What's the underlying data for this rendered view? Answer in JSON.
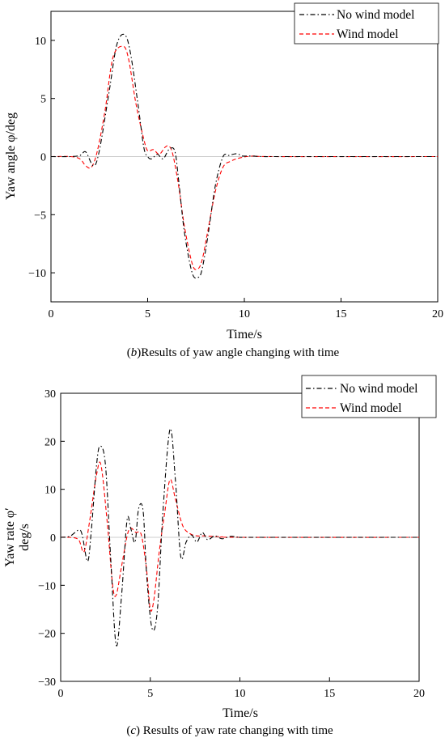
{
  "chart_data": [
    {
      "type": "line",
      "ylabel": "Yaw angle φ/deg",
      "xlabel": "Time/s",
      "caption_letter": "b",
      "caption_text": "Results of yaw angle changing with time",
      "xlim": [
        0,
        20
      ],
      "ylim": [
        -12.5,
        12.5
      ],
      "x_ticks": [
        0,
        5,
        10,
        15,
        20
      ],
      "y_ticks": [
        10,
        5,
        0,
        -5,
        -10
      ],
      "x_tick_labels": [
        "0",
        "5",
        "10",
        "15",
        "20"
      ],
      "y_tick_labels": [
        "10",
        "5",
        "0",
        "−5",
        "−10"
      ],
      "legend_position": "top-right",
      "series": [
        {
          "name": "No wind model",
          "color": "#000000",
          "style": "dash-dot",
          "x": [
            0,
            1.0,
            1.5,
            1.8,
            2.2,
            2.5,
            3.0,
            3.4,
            3.8,
            4.1,
            4.5,
            4.8,
            5.0,
            5.2,
            5.5,
            5.8,
            6.1,
            6.4,
            6.6,
            6.9,
            7.3,
            7.6,
            7.8,
            8.1,
            8.5,
            8.9,
            9.2,
            9.6,
            9.9,
            10.3,
            11,
            12,
            20
          ],
          "y": [
            0,
            0,
            0.1,
            0.4,
            -0.8,
            0.5,
            5.5,
            9.6,
            10.5,
            9.0,
            4.5,
            0.8,
            0.0,
            -0.2,
            0.2,
            -0.2,
            0.6,
            0.5,
            -2.0,
            -6.5,
            -10.0,
            -10.4,
            -9.8,
            -7.0,
            -2.5,
            0.0,
            0.1,
            0.25,
            0.05,
            0.05,
            0,
            0,
            0
          ]
        },
        {
          "name": "Wind model",
          "color": "#ff0000",
          "style": "dashed",
          "x": [
            0,
            1.0,
            1.5,
            1.8,
            2.1,
            2.4,
            2.8,
            3.2,
            3.7,
            4.0,
            4.4,
            4.8,
            5.0,
            5.3,
            5.6,
            5.9,
            6.1,
            6.3,
            6.6,
            6.9,
            7.3,
            7.55,
            7.8,
            8.1,
            8.5,
            8.9,
            9.3,
            9.8,
            10.5,
            11.5,
            20
          ],
          "y": [
            0,
            0,
            -0.2,
            -0.8,
            -0.9,
            0.5,
            4.0,
            8.5,
            9.5,
            8.5,
            4.5,
            1.5,
            0.5,
            0.6,
            0.2,
            0.8,
            0.9,
            0.2,
            -2.5,
            -6.0,
            -9.2,
            -9.7,
            -9.0,
            -6.5,
            -3.0,
            -0.9,
            -0.4,
            -0.1,
            0.05,
            0,
            0
          ]
        }
      ]
    },
    {
      "type": "line",
      "ylabel_line1": "Yaw rate φ′",
      "ylabel_line2": "deg/s",
      "xlabel": "Time/s",
      "caption_letter": "c",
      "caption_text": "Results of yaw rate changing with time",
      "xlim": [
        0,
        20
      ],
      "ylim": [
        -30,
        30
      ],
      "x_ticks": [
        0,
        5,
        10,
        15,
        20
      ],
      "y_ticks": [
        30,
        20,
        10,
        0,
        -10,
        -20,
        -30
      ],
      "x_tick_labels": [
        "0",
        "5",
        "10",
        "15",
        "20"
      ],
      "y_tick_labels": [
        "30",
        "20",
        "10",
        "0",
        "−10",
        "−20",
        "−30"
      ],
      "legend_position": "top-right",
      "series": [
        {
          "name": "No wind model",
          "color": "#000000",
          "style": "dash-dot",
          "x": [
            0,
            0.5,
            1.0,
            1.2,
            1.5,
            1.7,
            2.0,
            2.2,
            2.5,
            2.8,
            3.1,
            3.4,
            3.7,
            3.9,
            4.15,
            4.35,
            4.6,
            4.8,
            5.1,
            5.4,
            5.7,
            6.1,
            6.4,
            6.7,
            7.0,
            7.3,
            7.6,
            7.9,
            8.2,
            8.6,
            9.0,
            9.5,
            10,
            11,
            20
          ],
          "y": [
            0,
            0.2,
            1.5,
            0.5,
            -5.0,
            1.0,
            15.0,
            19.0,
            15.0,
            -5.0,
            -22.5,
            -12.0,
            3.5,
            2.0,
            -1.0,
            6.0,
            5.5,
            -8.0,
            -19.0,
            -15.0,
            5.0,
            22.5,
            12.0,
            -4.0,
            -1.0,
            0.5,
            -1.0,
            1.0,
            -0.5,
            0.3,
            -0.3,
            0.2,
            0,
            0,
            0
          ]
        },
        {
          "name": "Wind model",
          "color": "#ff0000",
          "style": "dashed",
          "x": [
            0,
            0.5,
            1.0,
            1.3,
            1.6,
            2.0,
            2.25,
            2.6,
            2.9,
            3.1,
            3.4,
            3.8,
            4.2,
            4.5,
            4.8,
            5.0,
            5.2,
            5.5,
            5.8,
            6.1,
            6.4,
            6.8,
            7.2,
            7.6,
            8.0,
            8.5,
            9.0,
            10,
            20
          ],
          "y": [
            0,
            0,
            -0.5,
            -3.0,
            3.0,
            13.0,
            15.0,
            3.0,
            -10.0,
            -12.0,
            -6.0,
            1.5,
            1.0,
            0.5,
            -7.0,
            -15.0,
            -13.0,
            -3.0,
            5.0,
            12.0,
            8.0,
            2.5,
            0.8,
            0.3,
            0.3,
            0.2,
            0.1,
            0,
            0
          ]
        }
      ]
    }
  ]
}
